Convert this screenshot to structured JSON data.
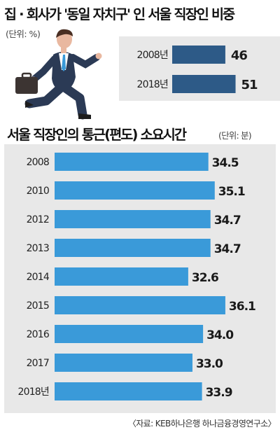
{
  "chart_data": [
    {
      "type": "bar",
      "title": "집 · 회사가 '동일 자치구' 인 서울 직장인 비중",
      "unit": "(단위: %)",
      "categories": [
        "2008년",
        "2018년"
      ],
      "values": [
        46,
        51
      ],
      "color": "#2d5a87"
    },
    {
      "type": "bar",
      "title": "서울 직장인의 통근(편도) 소요시간",
      "unit": "(단위: 분)",
      "categories": [
        "2008",
        "2010",
        "2012",
        "2013",
        "2014",
        "2015",
        "2016",
        "2017",
        "2018년"
      ],
      "values": [
        34.5,
        35.1,
        34.7,
        34.7,
        32.6,
        36.1,
        34.0,
        33.0,
        33.9
      ],
      "value_labels": [
        "34.5",
        "35.1",
        "34.7",
        "34.7",
        "32.6",
        "36.1",
        "34.0",
        "33.0",
        "33.9"
      ],
      "color": "#3a9ad9"
    }
  ],
  "source": "〈자료: KEB하나은행 하나금융경영연구소〉",
  "colors": {
    "panel_bg": "#e8e8e8",
    "bar_dark": "#2d5a87",
    "bar_light": "#3a9ad9"
  }
}
